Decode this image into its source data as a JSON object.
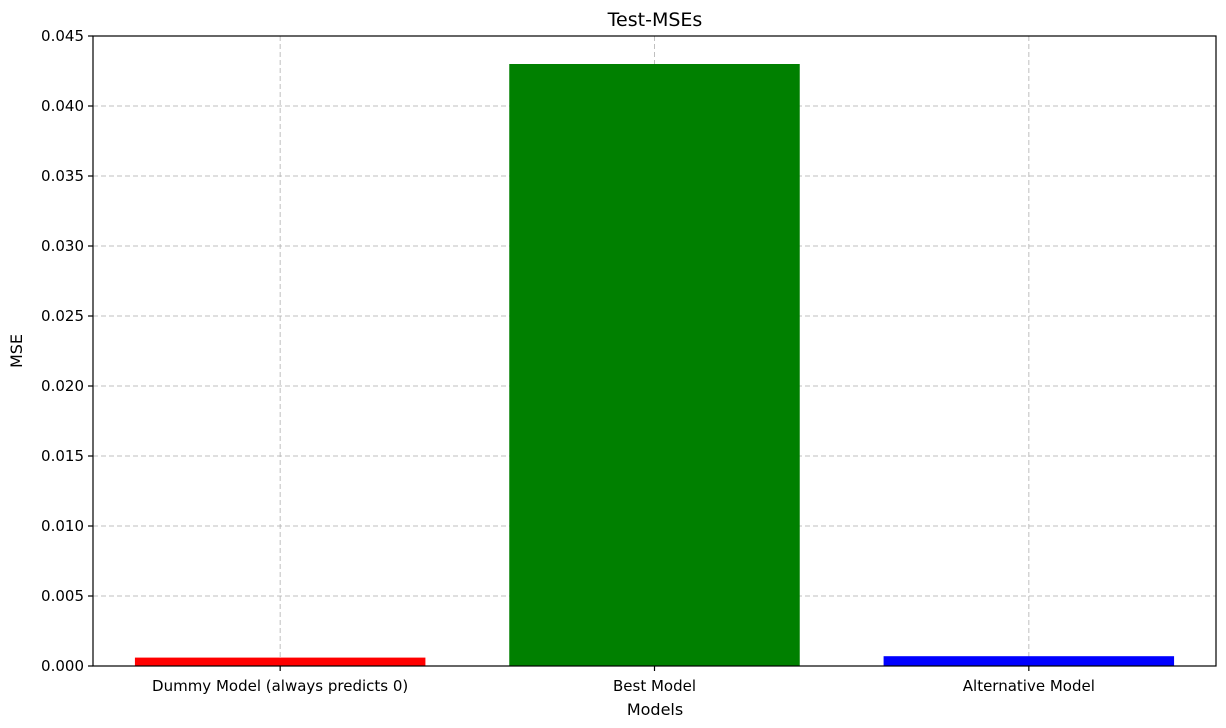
{
  "chart_data": {
    "type": "bar",
    "title": "Test-MSEs",
    "xlabel": "Models",
    "ylabel": "MSE",
    "categories": [
      "Dummy Model (always predicts 0)",
      "Best Model",
      "Alternative Model"
    ],
    "values": [
      0.0006,
      0.043,
      0.0007
    ],
    "colors": [
      "#ff0000",
      "#008000",
      "#0000ff"
    ],
    "ylim": [
      0,
      0.045
    ],
    "yticks": [
      0.0,
      0.005,
      0.01,
      0.015,
      0.02,
      0.025,
      0.03,
      0.035,
      0.04,
      0.045
    ],
    "ytick_labels": [
      "0.000",
      "0.005",
      "0.010",
      "0.015",
      "0.020",
      "0.025",
      "0.030",
      "0.035",
      "0.040",
      "0.045"
    ],
    "grid": true,
    "legend": "none"
  }
}
